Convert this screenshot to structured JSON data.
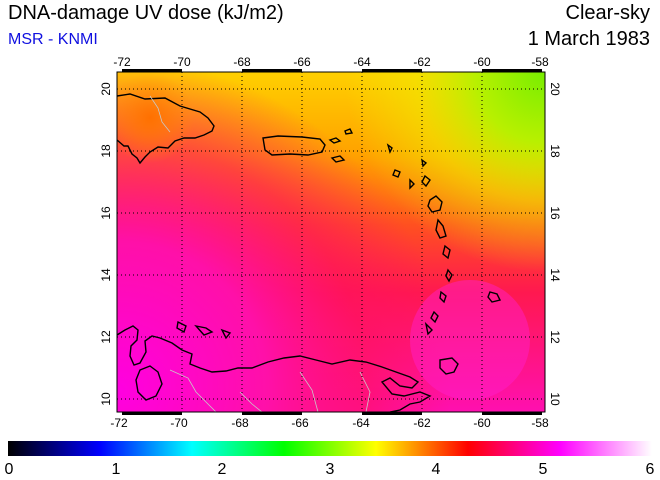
{
  "header": {
    "title": "DNA-damage UV dose (kJ/m2)",
    "subtitle": "MSR - KNMI",
    "sky_condition": "Clear-sky",
    "date": "1 March 1983"
  },
  "map": {
    "lon_ticks_top": [
      "-72",
      "-70",
      "-68",
      "-66",
      "-64",
      "-62",
      "-60",
      "-58"
    ],
    "lon_ticks_bottom": [
      "-72",
      "-70",
      "-68",
      "-66",
      "-64",
      "-62",
      "-60",
      "-58"
    ],
    "lat_ticks_left": [
      "20",
      "18",
      "16",
      "14",
      "12",
      "10"
    ],
    "lat_ticks_right": [
      "20",
      "18",
      "16",
      "14",
      "12",
      "10"
    ],
    "lon_range": [
      -72,
      -58
    ],
    "lat_range": [
      9.5,
      20.5
    ],
    "grid": "dotted"
  },
  "colorbar": {
    "ticks": [
      "0",
      "1",
      "2",
      "3",
      "4",
      "5",
      "6"
    ],
    "range": [
      0,
      6
    ],
    "colors": [
      "#000000",
      "#0000ff",
      "#00ffff",
      "#00ff00",
      "#ffff00",
      "#ff0000",
      "#ff00ff",
      "#ffffff"
    ]
  }
}
